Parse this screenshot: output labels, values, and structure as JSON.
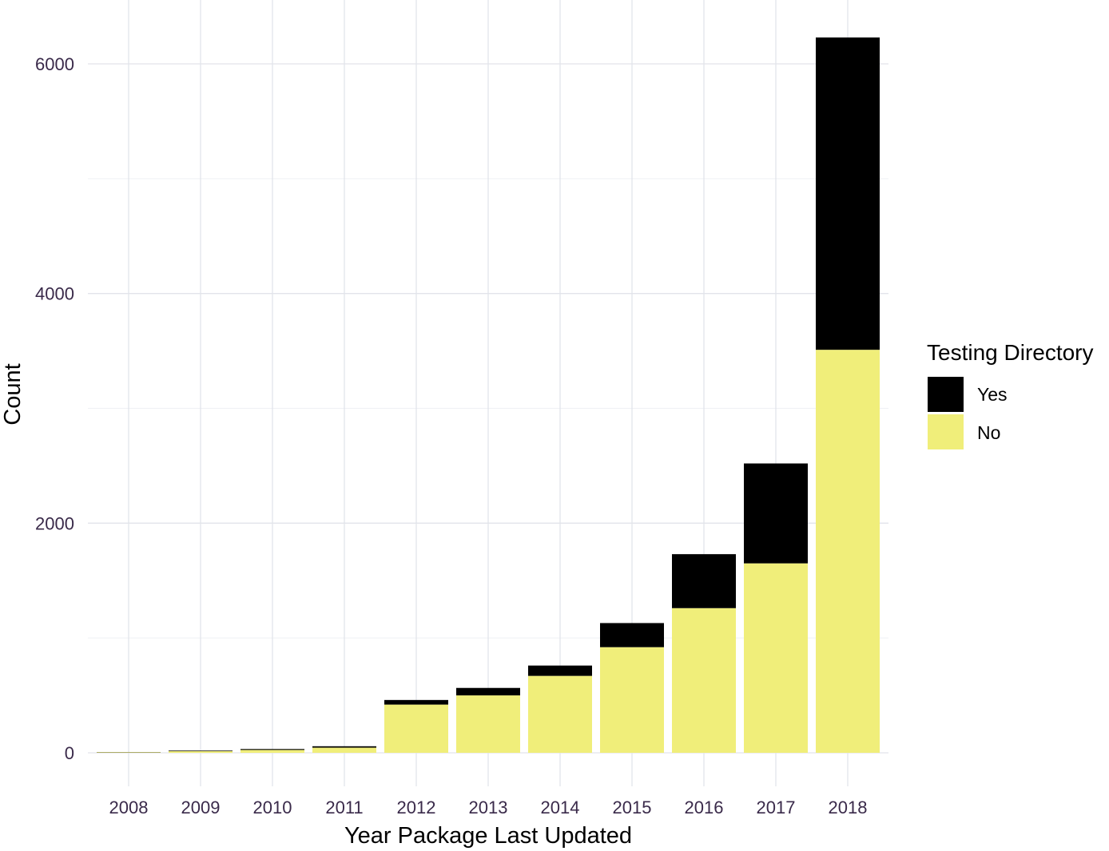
{
  "chart_data": {
    "type": "bar",
    "stacked": true,
    "title": "",
    "xlabel": "Year Package Last Updated",
    "ylabel": "Count",
    "categories": [
      "2008",
      "2009",
      "2010",
      "2011",
      "2012",
      "2013",
      "2014",
      "2015",
      "2016",
      "2017",
      "2018"
    ],
    "series": [
      {
        "name": "No",
        "color": "#f0ee7a",
        "values": [
          5,
          15,
          25,
          45,
          420,
          500,
          670,
          920,
          1260,
          1650,
          3510
        ]
      },
      {
        "name": "Yes",
        "color": "#000000",
        "values": [
          2,
          5,
          8,
          12,
          40,
          65,
          90,
          210,
          470,
          870,
          2720
        ]
      }
    ],
    "ylim": [
      -150,
      6300
    ],
    "yticks": [
      0,
      2000,
      4000,
      6000
    ],
    "ytick_labels": [
      "0",
      "2000",
      "4000",
      "6000"
    ],
    "grid": true,
    "legend": {
      "title": "Testing Directory",
      "position": "right",
      "entries": [
        {
          "label": "Yes",
          "color": "#000000"
        },
        {
          "label": "No",
          "color": "#f0ee7a"
        }
      ]
    }
  }
}
